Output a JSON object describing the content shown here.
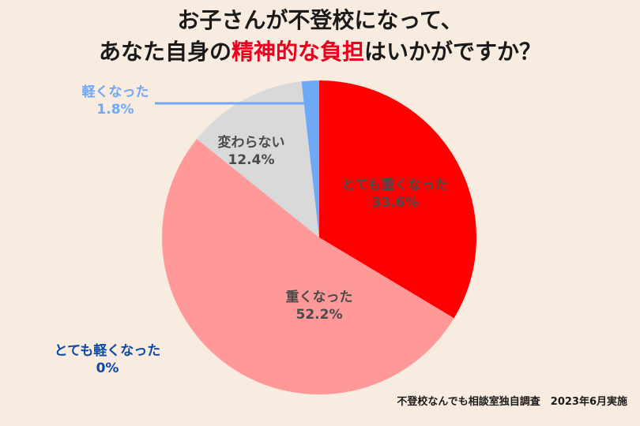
{
  "title": {
    "line1": "お子さんが不登校になって、",
    "line2_pre": "あなた自身の",
    "line2_highlight": "精神的な負担",
    "line2_post": "はいかがですか？"
  },
  "note": "不登校なんでも相談室独自調査　2023年6月実施",
  "chart_data": {
    "type": "pie",
    "slices": [
      {
        "label": "とても重くなった",
        "value": 33.6,
        "display": "33.6%",
        "color": "#ff0000",
        "text_color": "#4a4a4a"
      },
      {
        "label": "重くなった",
        "value": 52.2,
        "display": "52.2%",
        "color": "#ff9999",
        "text_color": "#4a4a4a"
      },
      {
        "label": "変わらない",
        "value": 12.4,
        "display": "12.4%",
        "color": "#d9d9d9",
        "text_color": "#4a4a4a"
      },
      {
        "label": "軽くなった",
        "value": 1.8,
        "display": "1.8%",
        "color": "#6fa8f5",
        "text_color": "#6fa8f5"
      },
      {
        "label": "とても軽くなった",
        "value": 0,
        "display": "0%",
        "color": "#0a4aa6",
        "text_color": "#0a4aa6"
      }
    ]
  }
}
